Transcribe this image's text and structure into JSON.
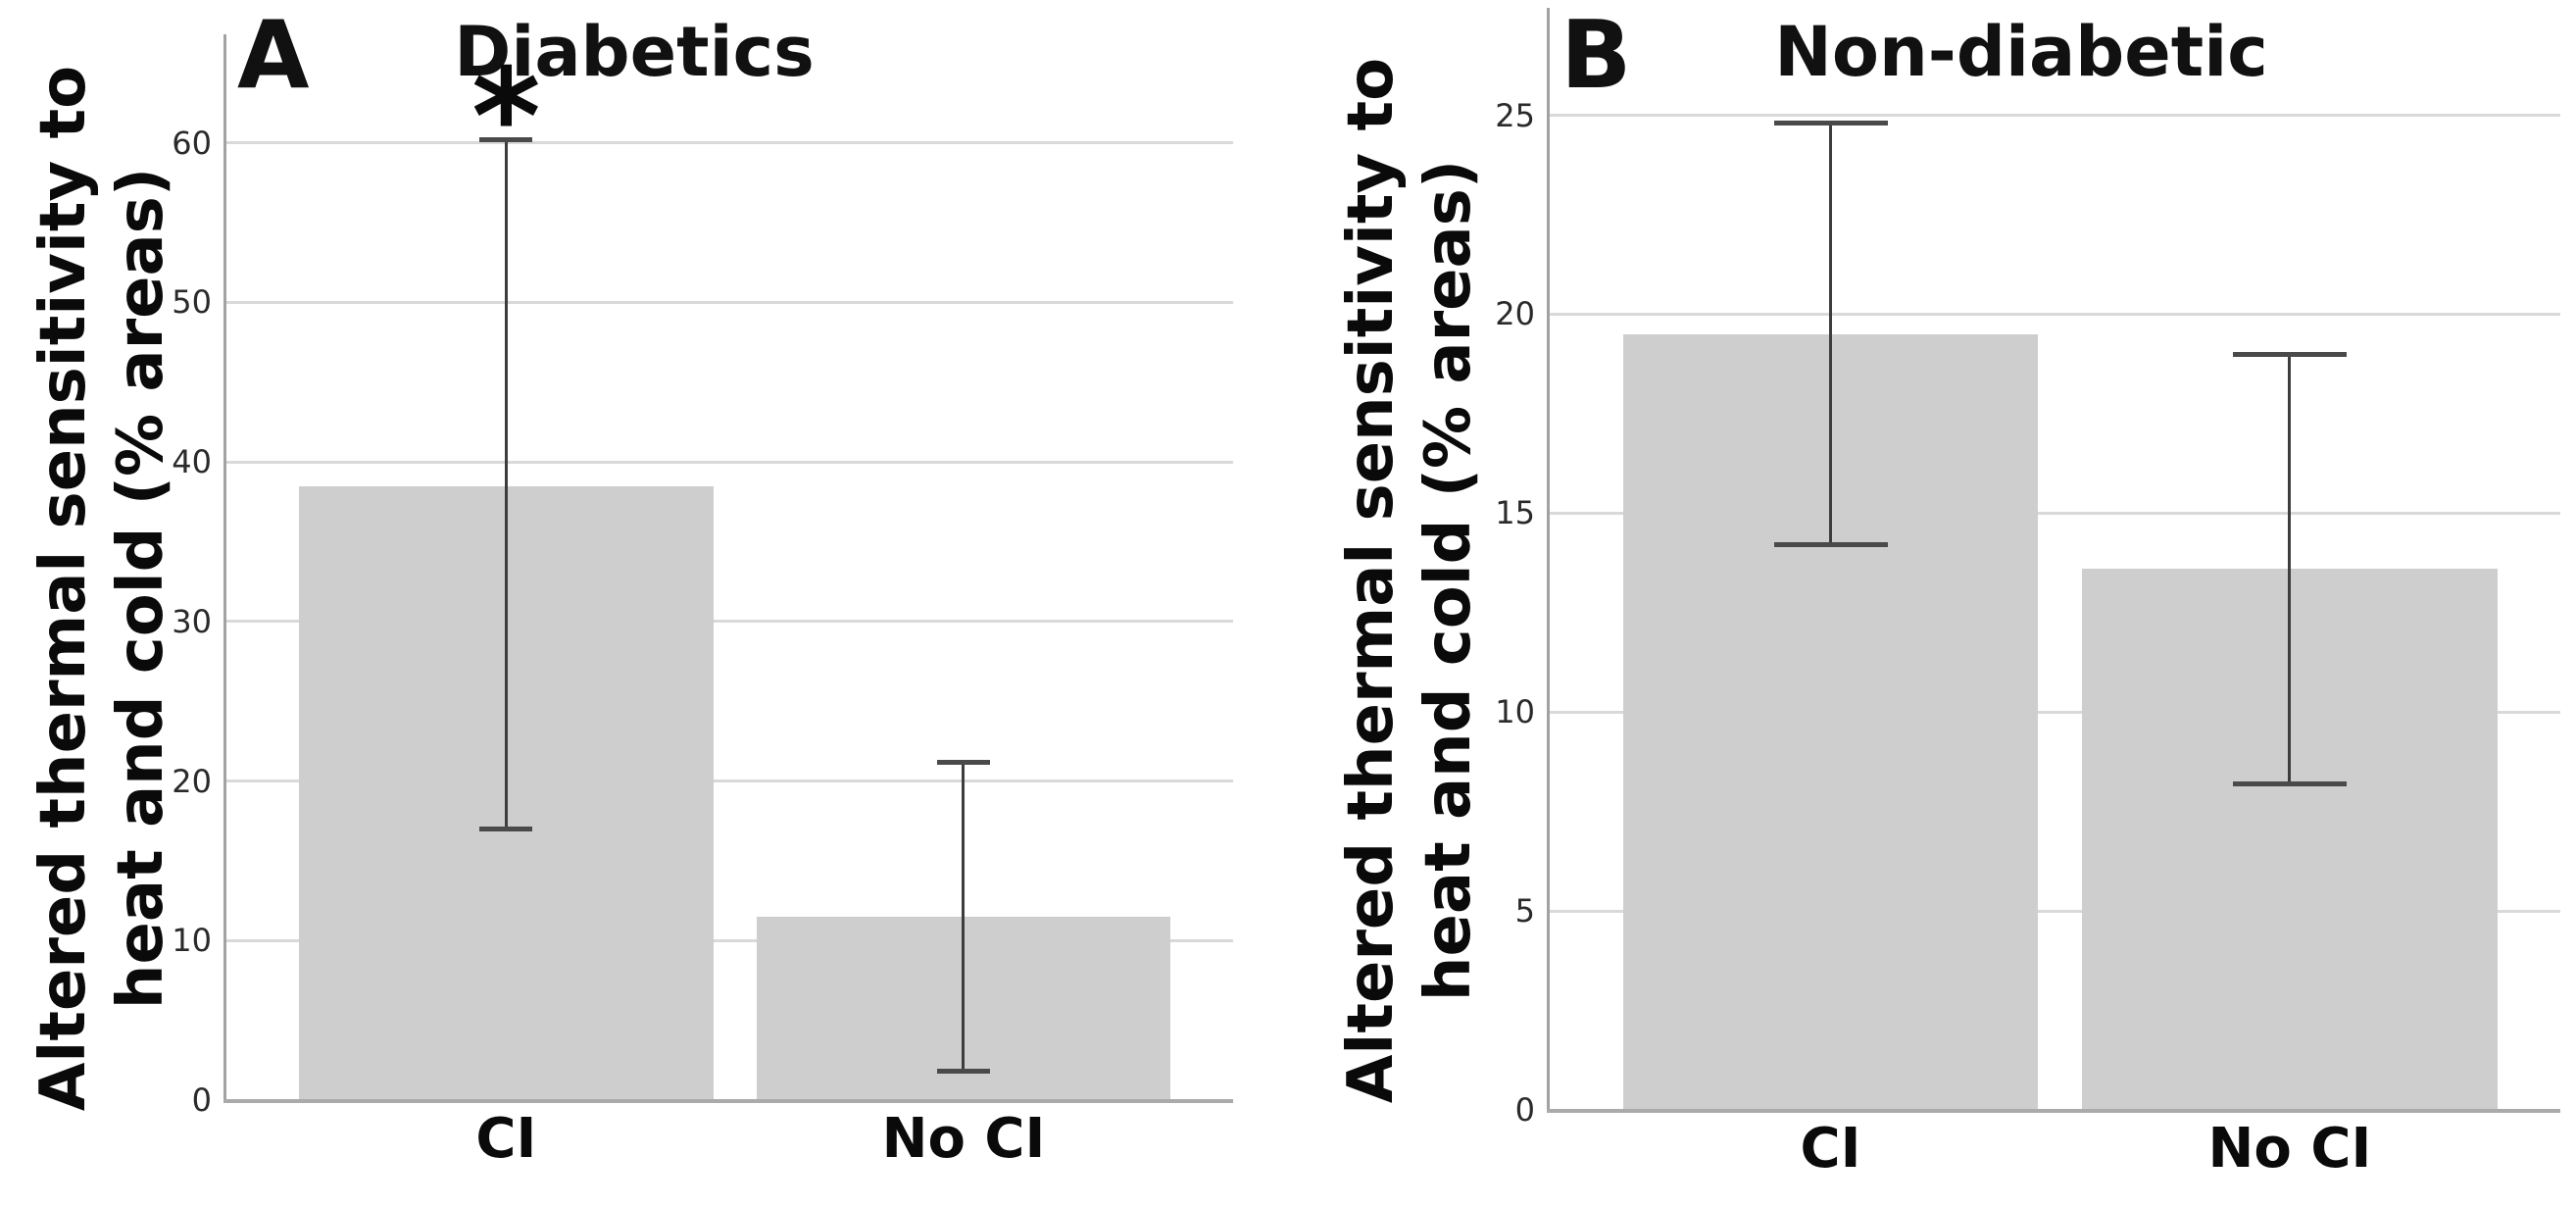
{
  "figure": {
    "background": "#ffffff",
    "bar_color": "#cecece",
    "gridline_color": "#d9d9d9",
    "axis_color": "#a2a2a2",
    "error_bar_color": "#3d3d3d",
    "text_color": "#111111"
  },
  "chart_data": [
    {
      "type": "bar",
      "panel_letter": "A",
      "title": "Diabetics",
      "categories": [
        "CI",
        "No CI"
      ],
      "values": [
        38.5,
        11.5
      ],
      "error_low": [
        17.0,
        1.8
      ],
      "error_high": [
        60.2,
        21.2
      ],
      "significance": [
        "*",
        null
      ],
      "ylabel": "Altered thermal sensitivity to heat and cold (% areas)",
      "ylabel_lines": [
        "Altered thermal sensitivity to",
        "heat and cold (% areas)"
      ],
      "xlabel": "",
      "yticks": [
        0,
        10,
        20,
        30,
        40,
        50,
        60
      ],
      "ylim": [
        0,
        66.8
      ],
      "grid": true,
      "legend": "none",
      "bar_color": "#cecece"
    },
    {
      "type": "bar",
      "panel_letter": "B",
      "title": "Non-diabetic",
      "categories": [
        "CI",
        "No CI"
      ],
      "values": [
        19.5,
        13.6
      ],
      "error_low": [
        14.2,
        8.2
      ],
      "error_high": [
        24.8,
        19.0
      ],
      "significance": [
        null,
        null
      ],
      "ylabel": "Altered thermal sensitivity to heat and cold (% areas)",
      "ylabel_lines": [
        "Altered thermal sensitivity to",
        "heat and cold (% areas)"
      ],
      "xlabel": "",
      "yticks": [
        0,
        5,
        10,
        15,
        20,
        25
      ],
      "ylim": [
        0,
        27.7
      ],
      "grid": true,
      "legend": "none",
      "bar_color": "#cecece"
    }
  ]
}
